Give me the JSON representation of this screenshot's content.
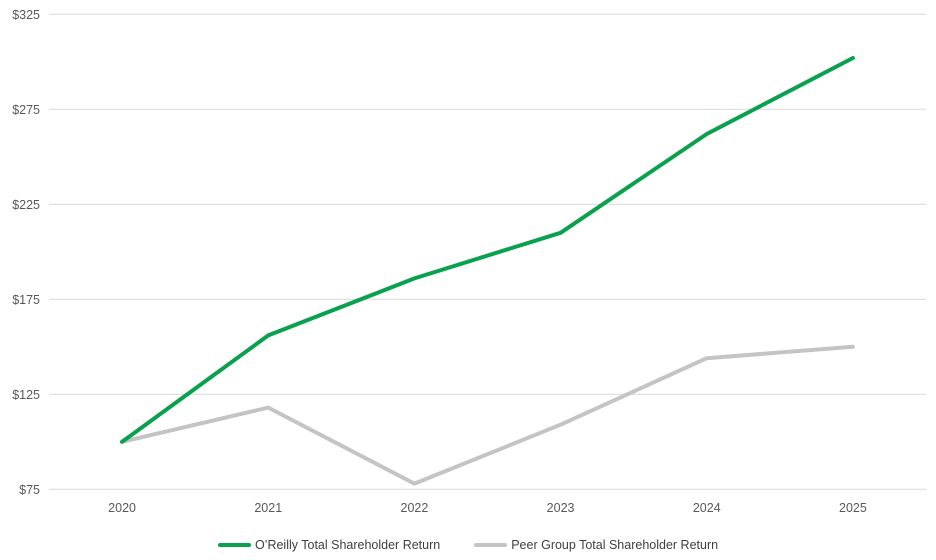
{
  "chart_data": {
    "type": "line",
    "title": "",
    "xlabel": "",
    "ylabel": "",
    "categories": [
      "2020",
      "2021",
      "2022",
      "2023",
      "2024",
      "2025"
    ],
    "series": [
      {
        "name": "O’Reilly Total Shareholder Return",
        "color": "#0aa14e",
        "values": [
          100,
          156,
          186,
          210,
          262,
          302
        ]
      },
      {
        "name": "Peer Group Total Shareholder Return",
        "color": "#c4c4c4",
        "values": [
          100,
          118,
          78,
          109,
          144,
          150
        ]
      }
    ],
    "ylim": [
      75,
      325
    ],
    "y_ticks": [
      {
        "value": 325,
        "label": "$325"
      },
      {
        "value": 275,
        "label": "$275"
      },
      {
        "value": 225,
        "label": "$225"
      },
      {
        "value": 175,
        "label": "$175"
      },
      {
        "value": 125,
        "label": "$125"
      },
      {
        "value": 75,
        "label": "$75"
      }
    ],
    "grid": true,
    "legend_position": "bottom"
  },
  "colors": {
    "gridline": "#d9d9d9",
    "axis_text": "#595959",
    "legend_text": "#3f3f3f",
    "background": "#ffffff"
  }
}
